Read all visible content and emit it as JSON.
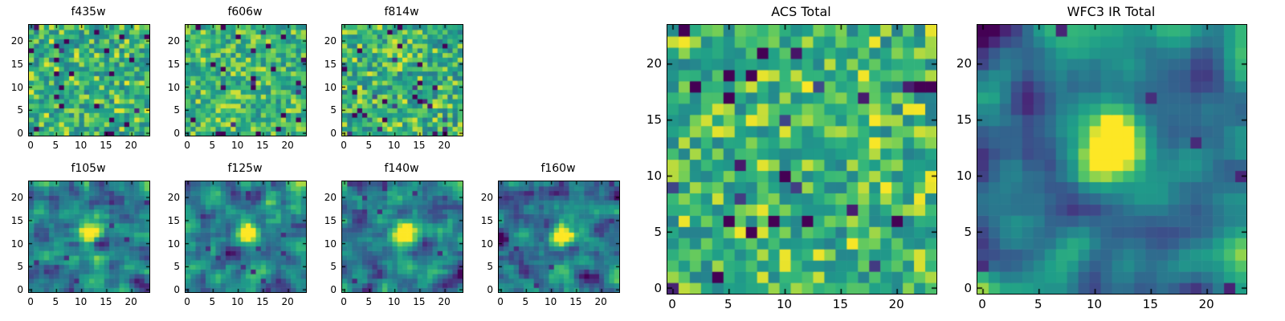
{
  "figure": {
    "background": "#ffffff",
    "text_color": "#000000"
  },
  "chart_data": {
    "type": "heatmap",
    "colormap": "viridis",
    "grid_size": 24,
    "x_ticks": [
      0,
      5,
      10,
      15,
      20
    ],
    "y_ticks": [
      0,
      5,
      10,
      15,
      20
    ],
    "axis_range": [
      0,
      23
    ],
    "legend": "none",
    "grid": false,
    "viridis_anchors": [
      [
        0.0,
        68,
        1,
        84
      ],
      [
        0.125,
        72,
        40,
        120
      ],
      [
        0.25,
        62,
        74,
        137
      ],
      [
        0.375,
        49,
        104,
        142
      ],
      [
        0.5,
        38,
        130,
        142
      ],
      [
        0.625,
        31,
        158,
        137
      ],
      [
        0.75,
        53,
        183,
        121
      ],
      [
        0.875,
        109,
        205,
        89
      ],
      [
        1.0,
        253,
        231,
        37
      ]
    ],
    "panels": [
      {
        "id": "f435w",
        "title": "f435w",
        "size": "small",
        "gen": {
          "seed": 101,
          "base": 0.72,
          "amp": 0.27,
          "pre_dark_prob": 0.05,
          "pre_dark_drop": 0.75,
          "smooth": 0,
          "post_dark_prob": 0.0,
          "post_dark_level": 0.0,
          "source": null
        }
      },
      {
        "id": "f606w",
        "title": "f606w",
        "size": "small",
        "gen": {
          "seed": 202,
          "base": 0.73,
          "amp": 0.24,
          "pre_dark_prob": 0.04,
          "pre_dark_drop": 0.7,
          "smooth": 0,
          "post_dark_prob": 0.0,
          "post_dark_level": 0.0,
          "source": null
        }
      },
      {
        "id": "f814w",
        "title": "f814w",
        "size": "small",
        "gen": {
          "seed": 303,
          "base": 0.71,
          "amp": 0.27,
          "pre_dark_prob": 0.05,
          "pre_dark_drop": 0.7,
          "smooth": 0,
          "post_dark_prob": 0.0,
          "post_dark_level": 0.0,
          "source": null
        }
      },
      {
        "id": "f105w",
        "title": "f105w",
        "size": "small",
        "gen": {
          "seed": 404,
          "base": 0.52,
          "amp": 0.62,
          "pre_dark_prob": 0.1,
          "pre_dark_drop": 0.7,
          "smooth": 1,
          "post_dark_prob": 0.02,
          "post_dark_level": 0.12,
          "source": {
            "cx": 12,
            "cy": 12.6,
            "sigma": 1.7,
            "amp": 0.7
          }
        }
      },
      {
        "id": "f125w",
        "title": "f125w",
        "size": "small",
        "gen": {
          "seed": 505,
          "base": 0.53,
          "amp": 0.6,
          "pre_dark_prob": 0.1,
          "pre_dark_drop": 0.7,
          "smooth": 1,
          "post_dark_prob": 0.02,
          "post_dark_level": 0.12,
          "source": {
            "cx": 11.8,
            "cy": 12.4,
            "sigma": 1.8,
            "amp": 0.75
          }
        }
      },
      {
        "id": "f140w",
        "title": "f140w",
        "size": "small",
        "gen": {
          "seed": 606,
          "base": 0.53,
          "amp": 0.6,
          "pre_dark_prob": 0.09,
          "pre_dark_drop": 0.7,
          "smooth": 1,
          "post_dark_prob": 0.015,
          "post_dark_level": 0.12,
          "source": {
            "cx": 12,
            "cy": 12.3,
            "sigma": 1.8,
            "amp": 0.8
          }
        }
      },
      {
        "id": "f160w",
        "title": "f160w",
        "size": "small",
        "gen": {
          "seed": 707,
          "base": 0.54,
          "amp": 0.58,
          "pre_dark_prob": 0.09,
          "pre_dark_drop": 0.7,
          "smooth": 1,
          "post_dark_prob": 0.015,
          "post_dark_level": 0.12,
          "source": {
            "cx": 12,
            "cy": 12.0,
            "sigma": 1.5,
            "amp": 0.8
          }
        }
      },
      {
        "id": "acs_total",
        "title": "ACS Total",
        "size": "large",
        "gen": {
          "seed": 808,
          "base": 0.74,
          "amp": 0.26,
          "pre_dark_prob": 0.045,
          "pre_dark_drop": 0.75,
          "smooth": 0,
          "post_dark_prob": 0.0,
          "post_dark_level": 0.0,
          "source": null
        }
      },
      {
        "id": "wfc3_ir_total",
        "title": "WFC3 IR Total",
        "size": "large",
        "gen": {
          "seed": 909,
          "base": 0.5,
          "amp": 0.85,
          "pre_dark_prob": 0.11,
          "pre_dark_drop": 0.9,
          "smooth": 2,
          "post_dark_prob": 0.01,
          "post_dark_level": 0.1,
          "source": {
            "cx": 12,
            "cy": 12.5,
            "sigma": 2.1,
            "amp": 0.85
          }
        }
      }
    ]
  }
}
